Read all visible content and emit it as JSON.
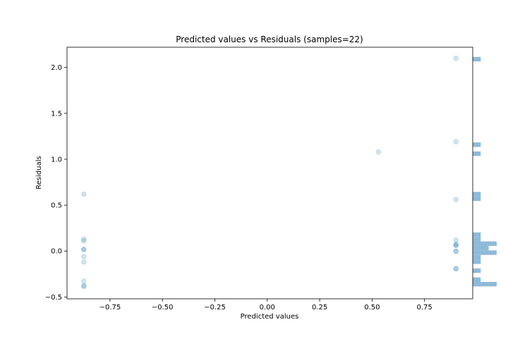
{
  "chart_data": {
    "type": "scatter",
    "title": "Predicted values vs Residuals (samples=22)",
    "xlabel": "Predicted values",
    "ylabel": "Residuals",
    "xlim": [
      -0.955,
      0.98
    ],
    "ylim": [
      -0.52,
      2.22
    ],
    "xticks": [
      -0.75,
      -0.5,
      -0.25,
      0.0,
      0.25,
      0.5,
      0.75
    ],
    "xtick_labels": [
      "−0.75",
      "−0.50",
      "−0.25",
      "0.00",
      "0.25",
      "0.50",
      "0.75"
    ],
    "yticks": [
      -0.5,
      0.0,
      0.5,
      1.0,
      1.5,
      2.0
    ],
    "ytick_labels": [
      "−0.5",
      "0.0",
      "0.5",
      "1.0",
      "1.5",
      "2.0"
    ],
    "grid": false,
    "point_color": "#1f77b4",
    "hist_color": "#8ebad9",
    "points": [
      {
        "x": -0.875,
        "y": 0.62
      },
      {
        "x": -0.875,
        "y": 0.13
      },
      {
        "x": -0.875,
        "y": 0.11
      },
      {
        "x": -0.875,
        "y": 0.02
      },
      {
        "x": -0.875,
        "y": 0.015
      },
      {
        "x": -0.875,
        "y": -0.06
      },
      {
        "x": -0.875,
        "y": -0.12
      },
      {
        "x": -0.875,
        "y": -0.33
      },
      {
        "x": -0.875,
        "y": -0.38
      },
      {
        "x": -0.875,
        "y": -0.385
      },
      {
        "x": 0.53,
        "y": 1.08
      },
      {
        "x": 0.9,
        "y": 2.1
      },
      {
        "x": 0.9,
        "y": 1.19
      },
      {
        "x": 0.9,
        "y": 0.56
      },
      {
        "x": 0.9,
        "y": 0.12
      },
      {
        "x": 0.9,
        "y": 0.075
      },
      {
        "x": 0.9,
        "y": 0.065
      },
      {
        "x": 0.9,
        "y": 0.06
      },
      {
        "x": 0.9,
        "y": 0.0
      },
      {
        "x": 0.9,
        "y": -0.005
      },
      {
        "x": 0.9,
        "y": -0.19
      },
      {
        "x": 0.9,
        "y": -0.195
      }
    ],
    "histogram": {
      "bin_edges": [
        -0.385,
        -0.336,
        -0.287,
        -0.238,
        -0.189,
        -0.14,
        -0.091,
        -0.042,
        0.007,
        0.056,
        0.105,
        0.154,
        0.203,
        0.252,
        0.301,
        0.35,
        0.399,
        0.448,
        0.497,
        0.546,
        0.595,
        0.644,
        0.693,
        0.742,
        0.791,
        0.84,
        0.889,
        0.938,
        0.987,
        1.036,
        1.085,
        1.134,
        1.183,
        1.232,
        1.281,
        1.33,
        1.379,
        1.428,
        1.477,
        1.526,
        1.575,
        1.624,
        1.673,
        1.722,
        1.771,
        1.82,
        1.869,
        1.918,
        1.967,
        2.016,
        2.065,
        2.114
      ],
      "counts": [
        3,
        1,
        0,
        1,
        0,
        1,
        1,
        3,
        2,
        3,
        1,
        1,
        0,
        0,
        0,
        0,
        0,
        0,
        0,
        1,
        1,
        0,
        0,
        0,
        0,
        0,
        0,
        0,
        0,
        1,
        0,
        1,
        0,
        0,
        0,
        0,
        0,
        0,
        0,
        0,
        0,
        0,
        0,
        0,
        0,
        0,
        0,
        0,
        0,
        0,
        1
      ]
    }
  }
}
